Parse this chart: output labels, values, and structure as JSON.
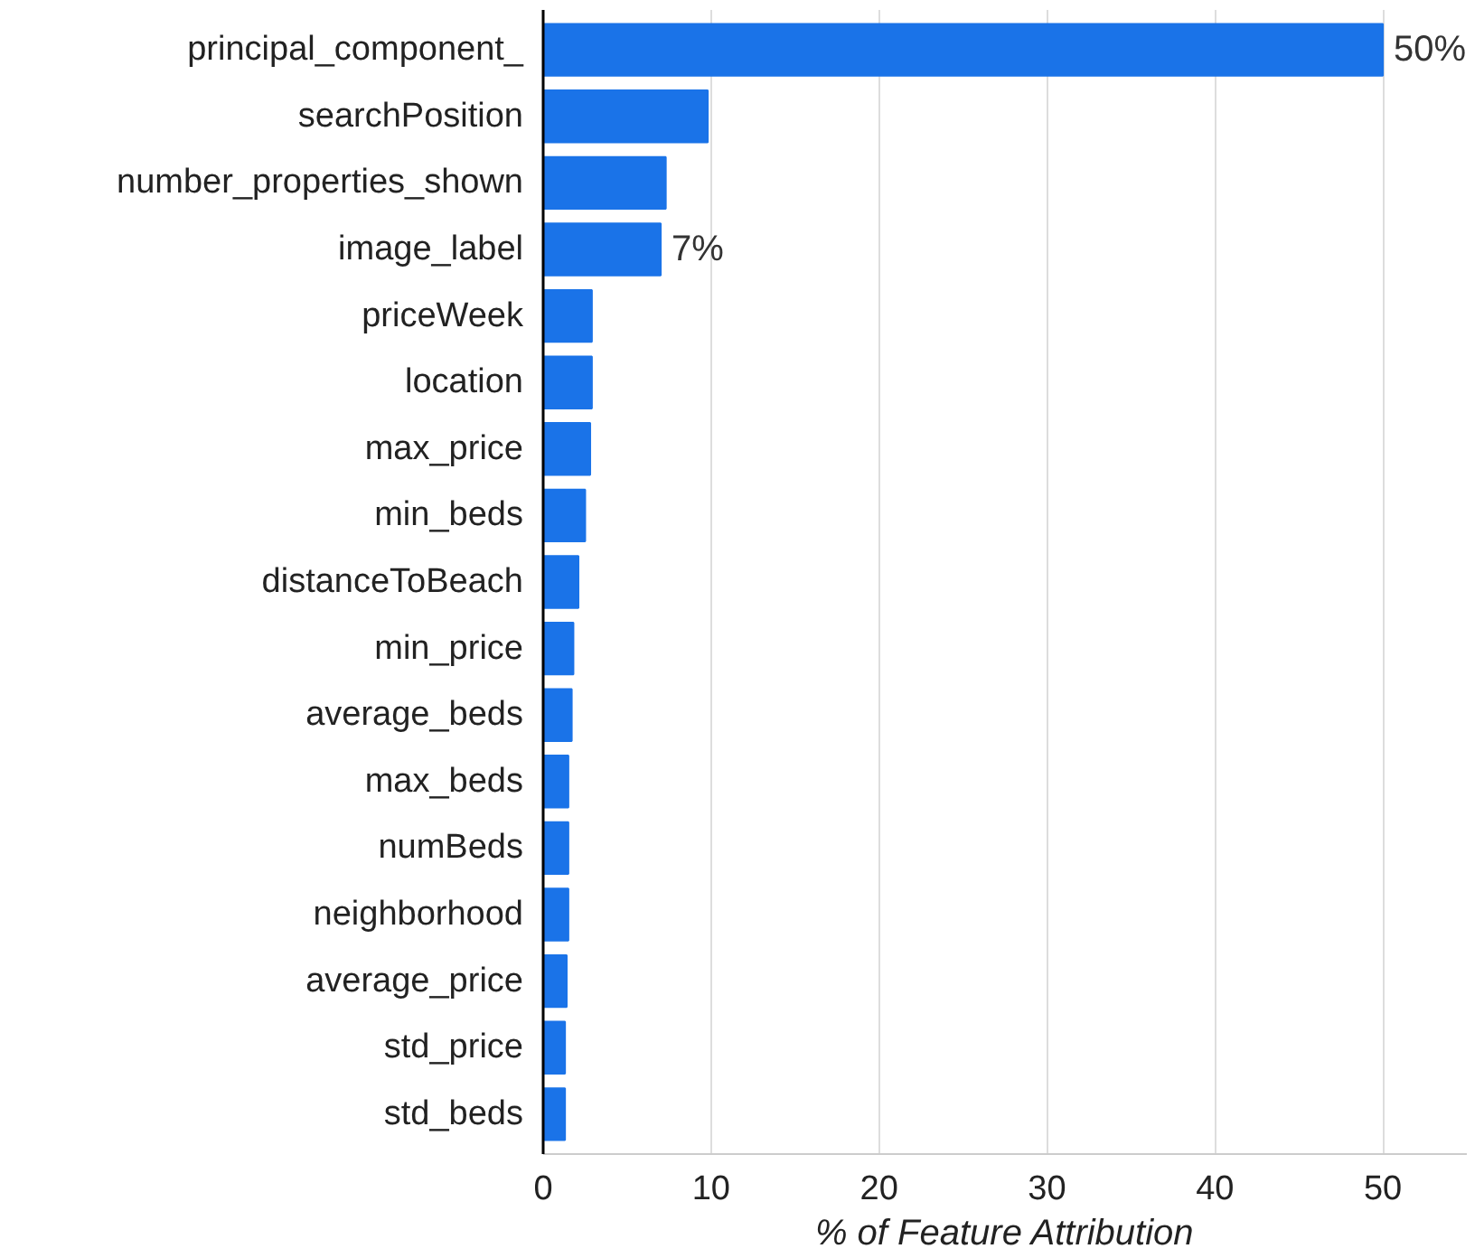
{
  "chart_data": {
    "type": "bar",
    "orientation": "horizontal",
    "xlabel": "% of Feature Attribution",
    "categories": [
      "principal_component_",
      "searchPosition",
      "number_properties_shown",
      "image_label",
      "priceWeek",
      "location",
      "max_price",
      "min_beds",
      "distanceToBeach",
      "min_price",
      "average_beds",
      "max_beds",
      "numBeds",
      "neighborhood",
      "average_price",
      "std_price",
      "std_beds"
    ],
    "values": [
      50,
      9.8,
      7.3,
      7,
      2.9,
      2.9,
      2.8,
      2.5,
      2.1,
      1.8,
      1.7,
      1.5,
      1.5,
      1.5,
      1.4,
      1.3,
      1.3
    ],
    "value_labels": [
      "50%",
      null,
      null,
      "7%",
      null,
      null,
      null,
      null,
      null,
      null,
      null,
      null,
      null,
      null,
      null,
      null,
      null
    ],
    "color": "#1a73e8",
    "xlim": [
      0,
      55
    ],
    "xticks": [
      0,
      10,
      20,
      30,
      40,
      50
    ],
    "grid": "x"
  }
}
